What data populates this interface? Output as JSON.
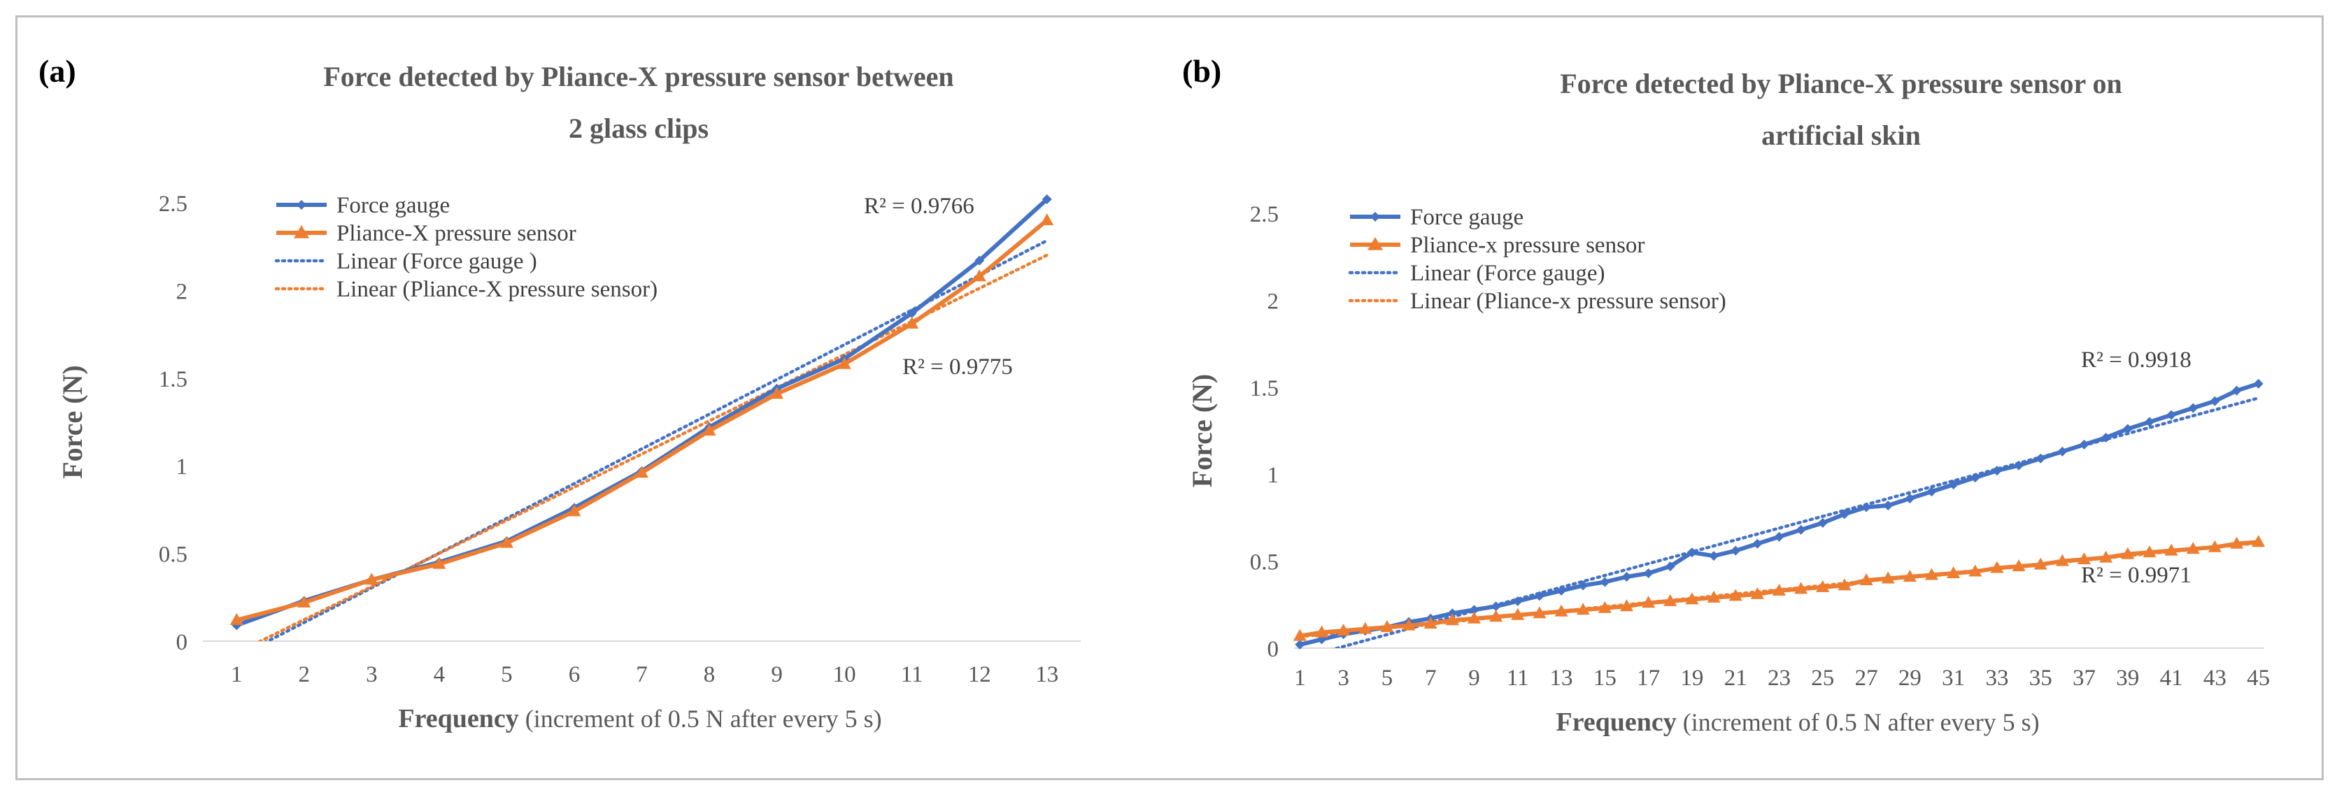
{
  "chart_data": [
    {
      "type": "line",
      "panel_label": "(a)",
      "title_lines": [
        "Force detected by Pliance-X pressure sensor between",
        "2 glass clips"
      ],
      "xlabel_bold": "Frequency",
      "xlabel_rest": " (increment of 0.5 N after every 5 s)",
      "ylabel": "Force (N)",
      "ylim": [
        0,
        2.5
      ],
      "yticks": [
        0,
        0.5,
        1,
        1.5,
        2,
        2.5
      ],
      "ytick_labels": [
        "0",
        "0.5",
        "1",
        "1.5",
        "2",
        "2.5"
      ],
      "x": [
        1,
        2,
        3,
        4,
        5,
        6,
        7,
        8,
        9,
        10,
        11,
        12,
        13
      ],
      "xtick_labels": [
        "1",
        "2",
        "3",
        "4",
        "5",
        "6",
        "7",
        "8",
        "9",
        "10",
        "11",
        "12",
        "13"
      ],
      "series": [
        {
          "name": "Force gauge",
          "color": "#4472c4",
          "marker": "diamond",
          "values": [
            0.09,
            0.23,
            0.35,
            0.45,
            0.57,
            0.76,
            0.97,
            1.22,
            1.44,
            1.61,
            1.87,
            2.17,
            2.52
          ]
        },
        {
          "name": "Pliance-X pressure sensor",
          "color": "#ed7d31",
          "marker": "triangle",
          "values": [
            0.12,
            0.22,
            0.35,
            0.44,
            0.56,
            0.74,
            0.96,
            1.2,
            1.41,
            1.58,
            1.81,
            2.08,
            2.4
          ]
        }
      ],
      "trendlines": [
        {
          "name": "Linear (Force gauge )",
          "color": "#4472c4",
          "of_series": 0,
          "r2_label": "R² = 0.9766"
        },
        {
          "name": "Linear (Pliance-X pressure sensor)",
          "color": "#ed7d31",
          "of_series": 1,
          "r2_label": "R² = 0.9775"
        }
      ],
      "legend_position": "top-left",
      "grid": false
    },
    {
      "type": "line",
      "panel_label": "(b)",
      "title_lines": [
        "Force detected by Pliance-X pressure sensor on",
        "artificial skin"
      ],
      "xlabel_bold": "Frequency",
      "xlabel_rest": " (increment of 0.5 N after every 5 s)",
      "ylabel": "Force (N)",
      "ylim": [
        0,
        2.5
      ],
      "yticks": [
        0,
        0.5,
        1,
        1.5,
        2,
        2.5
      ],
      "ytick_labels": [
        "0",
        "0.5",
        "1",
        "1.5",
        "2",
        "2.5"
      ],
      "x": [
        1,
        2,
        3,
        4,
        5,
        6,
        7,
        8,
        9,
        10,
        11,
        12,
        13,
        14,
        15,
        16,
        17,
        18,
        19,
        20,
        21,
        22,
        23,
        24,
        25,
        26,
        27,
        28,
        29,
        30,
        31,
        32,
        33,
        34,
        35,
        36,
        37,
        38,
        39,
        40,
        41,
        42,
        43,
        44,
        45
      ],
      "xtick_labels": [
        "1",
        "3",
        "5",
        "7",
        "9",
        "11",
        "13",
        "15",
        "17",
        "19",
        "21",
        "23",
        "25",
        "27",
        "29",
        "31",
        "33",
        "35",
        "37",
        "39",
        "41",
        "43",
        "45"
      ],
      "xtick_values": [
        1,
        3,
        5,
        7,
        9,
        11,
        13,
        15,
        17,
        19,
        21,
        23,
        25,
        27,
        29,
        31,
        33,
        35,
        37,
        39,
        41,
        43,
        45
      ],
      "series": [
        {
          "name": "Force gauge",
          "color": "#4472c4",
          "marker": "diamond",
          "values": [
            0.02,
            0.05,
            0.08,
            0.1,
            0.12,
            0.15,
            0.17,
            0.2,
            0.22,
            0.24,
            0.27,
            0.3,
            0.33,
            0.36,
            0.38,
            0.41,
            0.43,
            0.47,
            0.55,
            0.53,
            0.56,
            0.6,
            0.64,
            0.68,
            0.72,
            0.77,
            0.81,
            0.82,
            0.86,
            0.9,
            0.94,
            0.98,
            1.02,
            1.05,
            1.09,
            1.13,
            1.17,
            1.21,
            1.26,
            1.3,
            1.34,
            1.38,
            1.42,
            1.48,
            1.52
          ]
        },
        {
          "name": "Pliance-x pressure sensor",
          "color": "#ed7d31",
          "marker": "triangle",
          "values": [
            0.07,
            0.09,
            0.1,
            0.11,
            0.12,
            0.13,
            0.14,
            0.16,
            0.17,
            0.18,
            0.19,
            0.2,
            0.21,
            0.22,
            0.23,
            0.24,
            0.26,
            0.27,
            0.28,
            0.29,
            0.3,
            0.31,
            0.33,
            0.34,
            0.35,
            0.36,
            0.39,
            0.4,
            0.41,
            0.42,
            0.43,
            0.44,
            0.46,
            0.47,
            0.48,
            0.5,
            0.51,
            0.52,
            0.54,
            0.55,
            0.56,
            0.57,
            0.58,
            0.6,
            0.61
          ]
        }
      ],
      "trendlines": [
        {
          "name": "Linear (Force gauge)",
          "color": "#4472c4",
          "of_series": 0,
          "r2_label": "R² = 0.9918"
        },
        {
          "name": "Linear (Pliance-x pressure sensor)",
          "color": "#ed7d31",
          "of_series": 1,
          "r2_label": "R² = 0.9971"
        }
      ],
      "legend_position": "top-left",
      "grid": false
    }
  ]
}
